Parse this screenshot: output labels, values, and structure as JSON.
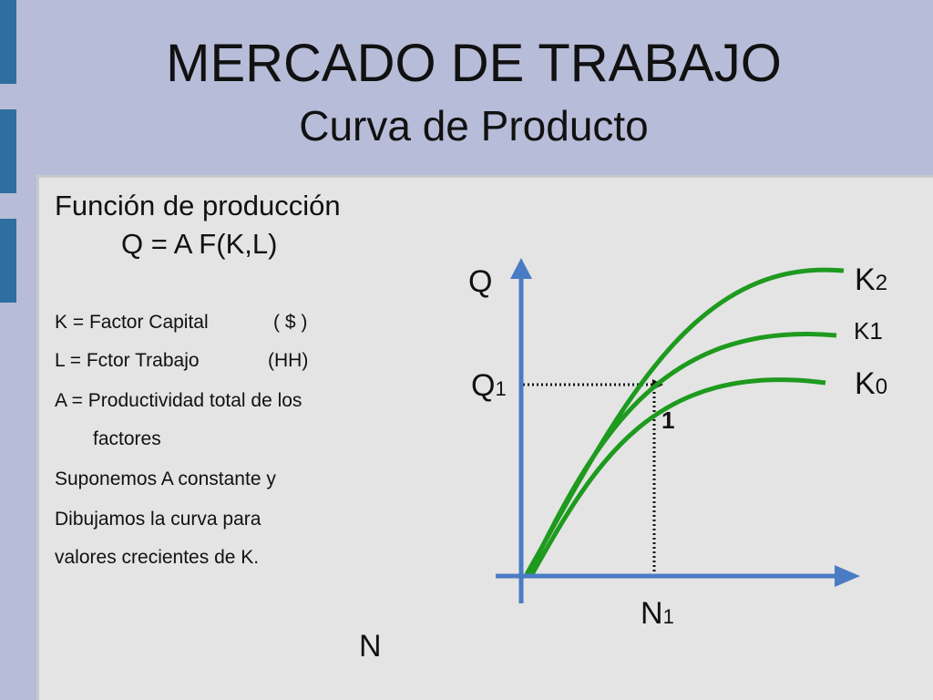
{
  "title": "MERCADO DE TRABAJO",
  "subtitle": "Curva de Producto",
  "content": {
    "heading": "Función de producción",
    "formula": "Q = A F(K,L)",
    "k_def": "K = Factor Capital",
    "k_unit": "( $ )",
    "l_def": "L = Fctor Trabajo",
    "l_unit": "(HH)",
    "a_def_line1": "A = Productividad total de los",
    "a_def_line2": "factores",
    "note_line1": "Suponemos A constante y",
    "note_line2": "Dibujamos  la  curva para",
    "note_line3": "valores crecientes  de K."
  },
  "diagram": {
    "y_axis_label": "Q",
    "x_axis_label": "N",
    "q1_label": "Q",
    "q1_sub": "1",
    "n1_label": "N",
    "n1_sub": "1",
    "point_label": "1",
    "curves": [
      {
        "base": "K",
        "sub": "2"
      },
      {
        "base": "K1",
        "sub": ""
      },
      {
        "base": "K",
        "sub": "0"
      }
    ],
    "colors": {
      "axis": "#4a7cc4",
      "curve": "#1e9a1e",
      "guide": "#111111"
    }
  }
}
